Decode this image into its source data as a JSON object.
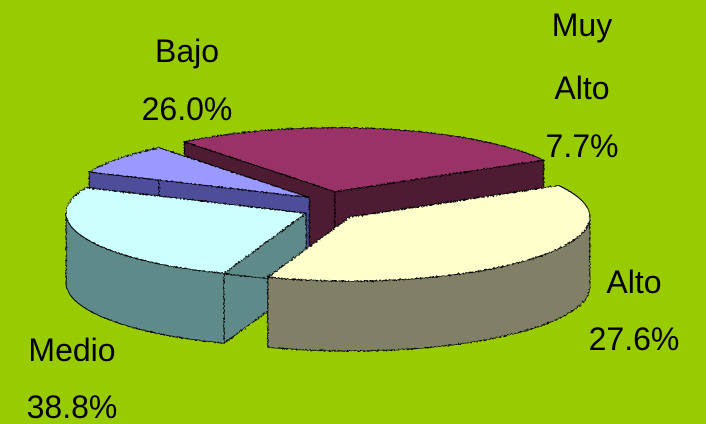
{
  "chart_data": {
    "type": "pie",
    "style": "3d-exploded",
    "background": "#99cc00",
    "slices": [
      {
        "label": "Bajo",
        "value": 26.0,
        "value_label": "26.0%",
        "color": "#ccffff",
        "side_color": "#5f8a8a"
      },
      {
        "label": "Muy Alto",
        "label_lines": [
          "Muy",
          "Alto"
        ],
        "value": 7.7,
        "value_label": "7.7%",
        "color": "#9999ff",
        "side_color": "#4d4d99"
      },
      {
        "label": "Alto",
        "value": 27.6,
        "value_label": "27.6%",
        "color": "#993366",
        "side_color": "#4d1a33"
      },
      {
        "label": "Medio",
        "value": 38.8,
        "value_label": "38.8%",
        "color": "#ffffcc",
        "side_color": "#808066"
      }
    ]
  }
}
